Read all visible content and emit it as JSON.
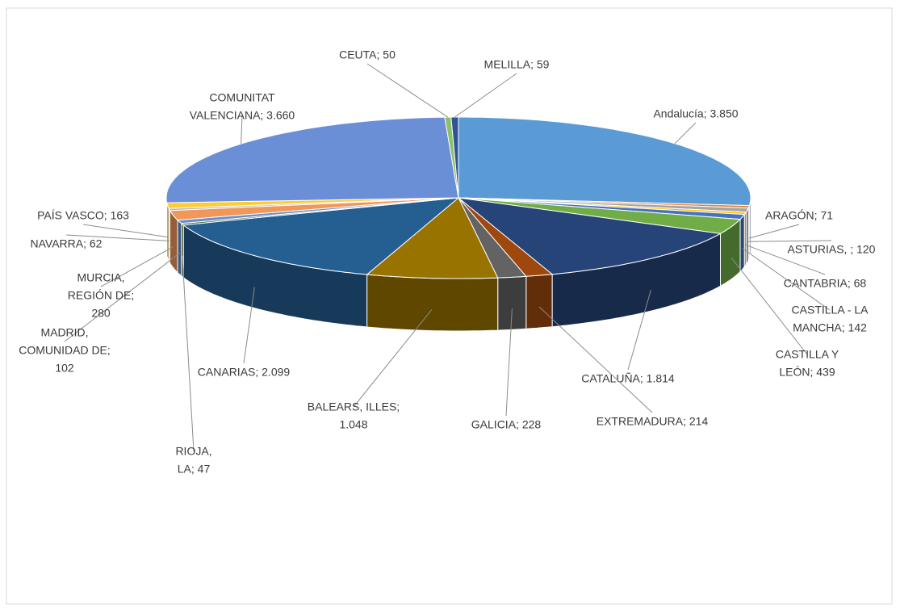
{
  "chart_data": {
    "type": "pie3d",
    "categories": [
      "Andalucía",
      "ARAGÓN",
      "ASTURIAS, ",
      "CANTABRIA",
      "CASTILLA - LA MANCHA",
      "CASTILLA Y LEÓN",
      "CATALUÑA",
      "EXTREMADURA",
      "GALICIA",
      "BALEARS, ILLES",
      "CANARIAS",
      "RIOJA, LA",
      "MADRID, COMUNIDAD DE",
      "MURCIA, REGIÓN DE",
      "NAVARRA",
      "PAÍS VASCO",
      "COMUNITAT VALENCIANA",
      "CEUTA",
      "MELILLA"
    ],
    "values": [
      3850,
      71,
      120,
      68,
      142,
      439,
      1814,
      214,
      228,
      1048,
      2099,
      47,
      102,
      280,
      62,
      163,
      3660,
      50,
      59
    ],
    "labels": [
      [
        "Andalucía; 3.850"
      ],
      [
        "ARAGÓN; 71"
      ],
      [
        "ASTURIAS, ; 120"
      ],
      [
        "CANTABRIA; 68"
      ],
      [
        "CASTILLA - LA",
        "MANCHA; 142"
      ],
      [
        "CASTILLA Y",
        "LEÓN; 439"
      ],
      [
        "CATALUÑA; 1.814"
      ],
      [
        "EXTREMADURA; 214"
      ],
      [
        "GALICIA; 228"
      ],
      [
        "BALEARS, ILLES;",
        "1.048"
      ],
      [
        "CANARIAS; 2.099"
      ],
      [
        "RIOJA,",
        "LA; 47"
      ],
      [
        "MADRID,",
        "COMUNIDAD DE;",
        "102"
      ],
      [
        "MURCIA,",
        "REGIÓN DE;",
        "280"
      ],
      [
        "NAVARRA; 62"
      ],
      [
        "PAÍS VASCO; 163"
      ],
      [
        "COMUNITAT",
        "VALENCIANA; 3.660"
      ],
      [
        "CEUTA; 50"
      ],
      [
        "MELILLA; 59"
      ]
    ],
    "colors": [
      "#5b9bd5",
      "#ed7d31",
      "#a5a5a5",
      "#ffc000",
      "#4472c4",
      "#70ad47",
      "#264478",
      "#9e480e",
      "#636363",
      "#997300",
      "#255e91",
      "#43682b",
      "#698ed0",
      "#f1975a",
      "#b7b7b7",
      "#ffcd33",
      "#6a8fd6",
      "#8cc168",
      "#2f5597"
    ]
  }
}
